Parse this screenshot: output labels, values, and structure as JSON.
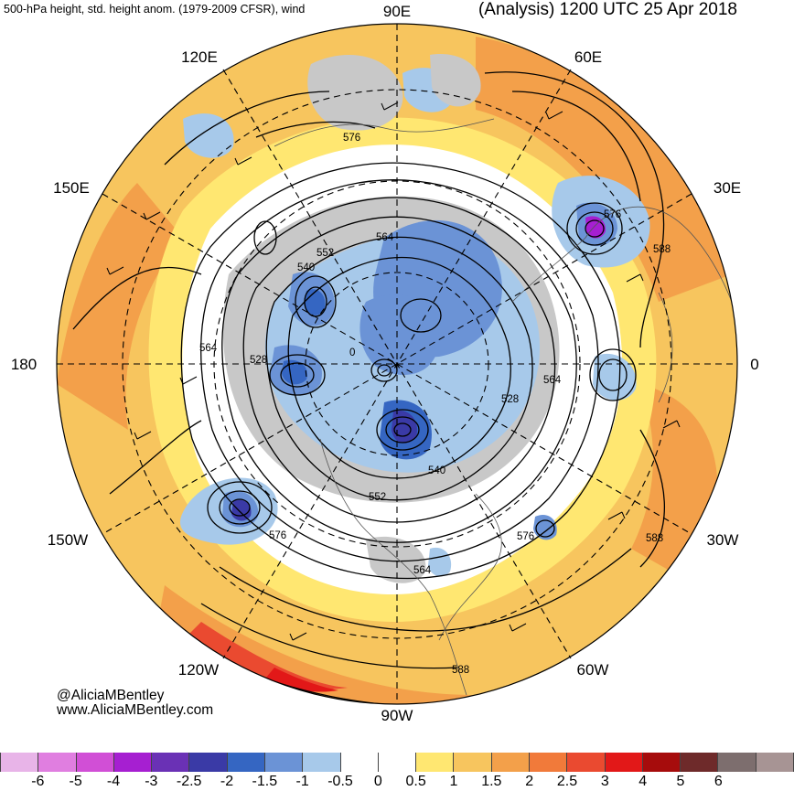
{
  "title_left": "500-hPa height, std. height anom. (1979-2009 CFSR), wind",
  "title_right": "(Analysis) 1200 UTC 25 Apr 2018",
  "credit": {
    "handle": "@AliciaMBentley",
    "website": "www.AliciaMBentley.com"
  },
  "longitude_labels": [
    "90E",
    "60E",
    "30E",
    "0",
    "30W",
    "60W",
    "90W",
    "120W",
    "150W",
    "180",
    "150E",
    "120E"
  ],
  "contour_labels": [
    "576",
    "576",
    "564",
    "552",
    "540",
    "564",
    "528",
    "0",
    "564",
    "528",
    "540",
    "552",
    "576",
    "576",
    "564",
    "588",
    "588",
    "588"
  ],
  "colorbar": {
    "colors": [
      "#e8b4e8",
      "#e07ee0",
      "#d14fd6",
      "#a61fd1",
      "#6a31b5",
      "#3a3aa6",
      "#3566c2",
      "#6b93d6",
      "#a7c9ea",
      "#ffffff",
      "#ffffff",
      "#ffe771",
      "#f7c55e",
      "#f3a04a",
      "#f17a3a",
      "#ea4a30",
      "#e21818",
      "#a60c0c",
      "#6e2a2a",
      "#7d6e6e",
      "#a79494"
    ],
    "labels": [
      "-6",
      "-5",
      "-4",
      "-3",
      "-2.5",
      "-2",
      "-1.5",
      "-1",
      "-0.5",
      "0",
      "0.5",
      "1",
      "1.5",
      "2",
      "2.5",
      "3",
      "4",
      "5",
      "6"
    ]
  }
}
